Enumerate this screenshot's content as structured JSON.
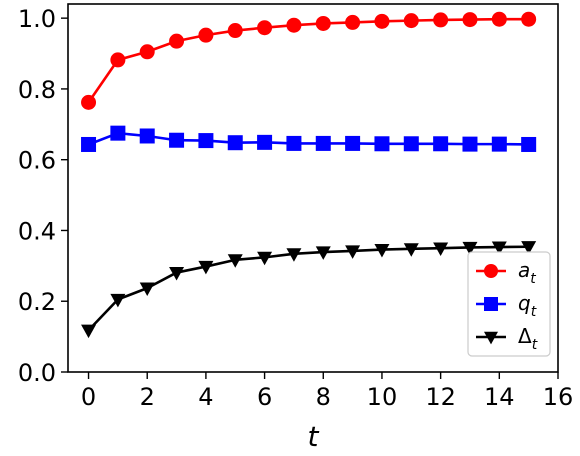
{
  "chart_data": {
    "type": "line",
    "title": "",
    "xlabel": "t",
    "ylabel": "",
    "xlim": [
      -0.7,
      16
    ],
    "ylim": [
      0.0,
      1.04
    ],
    "xticks": [
      0,
      2,
      4,
      6,
      8,
      10,
      12,
      14,
      16
    ],
    "yticks": [
      0.0,
      0.2,
      0.4,
      0.6,
      0.8,
      1.0
    ],
    "xtick_labels": [
      "0",
      "2",
      "4",
      "6",
      "8",
      "10",
      "12",
      "14",
      "16"
    ],
    "ytick_labels": [
      "0.0",
      "0.2",
      "0.4",
      "0.6",
      "0.8",
      "1.0"
    ],
    "grid": false,
    "legend_position": "lower-right",
    "x": [
      0,
      1,
      2,
      3,
      4,
      5,
      6,
      7,
      8,
      9,
      10,
      11,
      12,
      13,
      14,
      15
    ],
    "series": [
      {
        "name": "a_t",
        "legend_base": "a",
        "legend_sub": "t",
        "color": "#ff0000",
        "marker": "circle",
        "values": [
          0.762,
          0.882,
          0.905,
          0.935,
          0.952,
          0.965,
          0.973,
          0.98,
          0.985,
          0.988,
          0.991,
          0.993,
          0.995,
          0.996,
          0.997,
          0.997
        ]
      },
      {
        "name": "q_t",
        "legend_base": "q",
        "legend_sub": "t",
        "color": "#0000ff",
        "marker": "square",
        "values": [
          0.643,
          0.675,
          0.667,
          0.655,
          0.654,
          0.648,
          0.649,
          0.646,
          0.646,
          0.646,
          0.645,
          0.645,
          0.645,
          0.644,
          0.644,
          0.643
        ]
      },
      {
        "name": "Δ_t",
        "legend_base": "Δ",
        "legend_sub": "t",
        "color": "#000000",
        "marker": "triangle-down",
        "values": [
          0.118,
          0.205,
          0.237,
          0.281,
          0.298,
          0.317,
          0.324,
          0.334,
          0.339,
          0.342,
          0.346,
          0.348,
          0.35,
          0.352,
          0.353,
          0.354
        ]
      }
    ]
  }
}
